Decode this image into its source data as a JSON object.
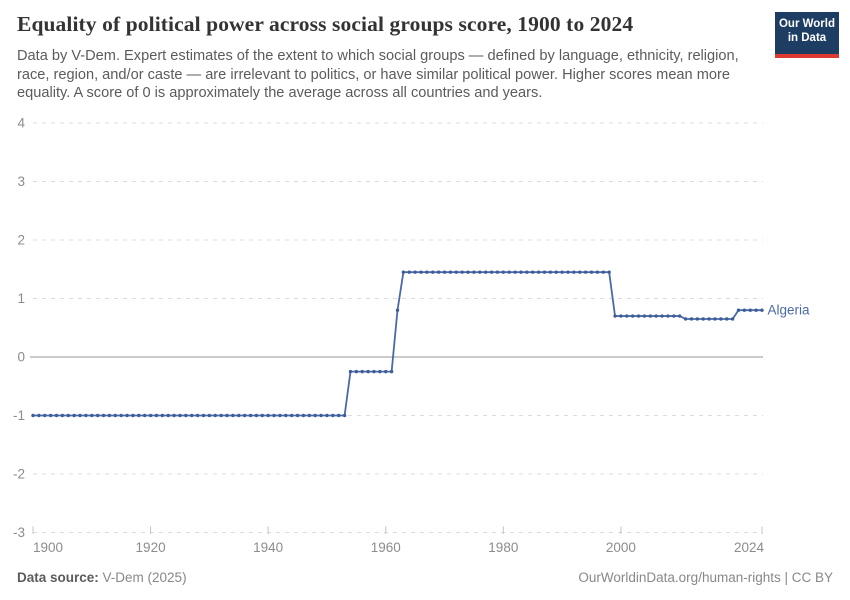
{
  "header": {
    "title": "Equality of political power across social groups score, 1900 to 2024",
    "subtitle": "Data by V-Dem. Expert estimates of the extent to which social groups — defined by language, ethnicity, religion, race, region, and/or caste — are irrelevant to politics, or have similar political power. Higher scores mean more equality. A score of 0 is approximately the average across all countries and years.",
    "logo": {
      "line1": "Our World",
      "line2": "in Data"
    }
  },
  "footer": {
    "source_label": "Data source:",
    "source_value": " V-Dem (2025)",
    "attribution": "OurWorldinData.org/human-rights | CC BY"
  },
  "colors": {
    "logo_bg": "#1d3d63",
    "logo_accent": "#dc3a32",
    "series_line": "#4a69a7",
    "series_marker": "#3d5c99",
    "grid": "#dcdcdc",
    "zero_line": "#949494",
    "axis_label": "#8c8c8c",
    "tick_mark": "#c4c4c4"
  },
  "chart_data": {
    "type": "line",
    "title": "Equality of political power across social groups score, 1900 to 2024",
    "xlabel": "",
    "ylabel": "",
    "xlim": [
      1900,
      2024
    ],
    "ylim": [
      -3,
      4
    ],
    "x_ticks": [
      1900,
      1920,
      1940,
      1960,
      1980,
      2000,
      2024
    ],
    "y_ticks": [
      -3,
      -2,
      -1,
      0,
      1,
      2,
      3,
      4
    ],
    "grid": "horizontal-dashed",
    "zero_line": true,
    "legend_position": "end-of-line-label",
    "series": [
      {
        "name": "Algeria",
        "x": [
          1900,
          1901,
          1902,
          1903,
          1904,
          1905,
          1906,
          1907,
          1908,
          1909,
          1910,
          1911,
          1912,
          1913,
          1914,
          1915,
          1916,
          1917,
          1918,
          1919,
          1920,
          1921,
          1922,
          1923,
          1924,
          1925,
          1926,
          1927,
          1928,
          1929,
          1930,
          1931,
          1932,
          1933,
          1934,
          1935,
          1936,
          1937,
          1938,
          1939,
          1940,
          1941,
          1942,
          1943,
          1944,
          1945,
          1946,
          1947,
          1948,
          1949,
          1950,
          1951,
          1952,
          1953,
          1954,
          1955,
          1956,
          1957,
          1958,
          1959,
          1960,
          1961,
          1962,
          1963,
          1964,
          1965,
          1966,
          1967,
          1968,
          1969,
          1970,
          1971,
          1972,
          1973,
          1974,
          1975,
          1976,
          1977,
          1978,
          1979,
          1980,
          1981,
          1982,
          1983,
          1984,
          1985,
          1986,
          1987,
          1988,
          1989,
          1990,
          1991,
          1992,
          1993,
          1994,
          1995,
          1996,
          1997,
          1998,
          1999,
          2000,
          2001,
          2002,
          2003,
          2004,
          2005,
          2006,
          2007,
          2008,
          2009,
          2010,
          2011,
          2012,
          2013,
          2014,
          2015,
          2016,
          2017,
          2018,
          2019,
          2020,
          2021,
          2022,
          2023,
          2024
        ],
        "y": [
          -1,
          -1,
          -1,
          -1,
          -1,
          -1,
          -1,
          -1,
          -1,
          -1,
          -1,
          -1,
          -1,
          -1,
          -1,
          -1,
          -1,
          -1,
          -1,
          -1,
          -1,
          -1,
          -1,
          -1,
          -1,
          -1,
          -1,
          -1,
          -1,
          -1,
          -1,
          -1,
          -1,
          -1,
          -1,
          -1,
          -1,
          -1,
          -1,
          -1,
          -1,
          -1,
          -1,
          -1,
          -1,
          -1,
          -1,
          -1,
          -1,
          -1,
          -1,
          -1,
          -1,
          -1,
          -0.25,
          -0.25,
          -0.25,
          -0.25,
          -0.25,
          -0.25,
          -0.25,
          -0.25,
          0.8,
          1.45,
          1.45,
          1.45,
          1.45,
          1.45,
          1.45,
          1.45,
          1.45,
          1.45,
          1.45,
          1.45,
          1.45,
          1.45,
          1.45,
          1.45,
          1.45,
          1.45,
          1.45,
          1.45,
          1.45,
          1.45,
          1.45,
          1.45,
          1.45,
          1.45,
          1.45,
          1.45,
          1.45,
          1.45,
          1.45,
          1.45,
          1.45,
          1.45,
          1.45,
          1.45,
          1.45,
          0.7,
          0.7,
          0.7,
          0.7,
          0.7,
          0.7,
          0.7,
          0.7,
          0.7,
          0.7,
          0.7,
          0.7,
          0.65,
          0.65,
          0.65,
          0.65,
          0.65,
          0.65,
          0.65,
          0.65,
          0.65,
          0.8,
          0.8,
          0.8,
          0.8,
          0.8
        ]
      }
    ]
  }
}
